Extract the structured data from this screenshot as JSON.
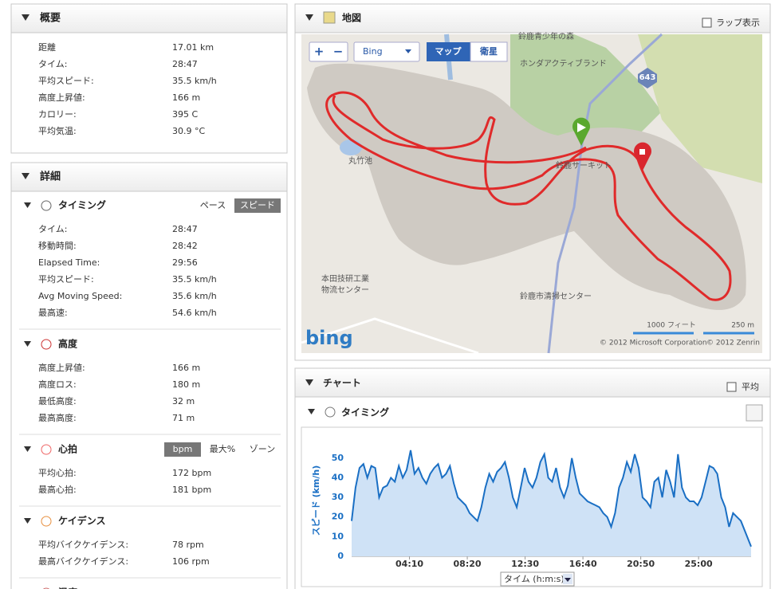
{
  "summary": {
    "title": "概要",
    "rows": [
      [
        "距離",
        "17.01 km"
      ],
      [
        "タイム:",
        "28:47"
      ],
      [
        "平均スピード:",
        "35.5 km/h"
      ],
      [
        "高度上昇値:",
        "166 m"
      ],
      [
        "カロリー:",
        "395 C"
      ],
      [
        "平均気温:",
        "30.9 °C"
      ]
    ]
  },
  "details": {
    "title": "詳細",
    "sections": [
      {
        "title": "タイミング",
        "tabs": [
          "ペース",
          "スピード"
        ],
        "rows": [
          [
            "タイム:",
            "28:47"
          ],
          [
            "移動時間:",
            "28:42"
          ],
          [
            "Elapsed Time:",
            "29:56"
          ],
          [
            "平均スピード:",
            "35.5 km/h"
          ],
          [
            "Avg Moving Speed:",
            "35.6 km/h"
          ],
          [
            "最高速:",
            "54.6 km/h"
          ]
        ]
      },
      {
        "title": "高度",
        "rows": [
          [
            "高度上昇値:",
            "166 m"
          ],
          [
            "高度ロス:",
            "180 m"
          ],
          [
            "最低高度:",
            "32 m"
          ],
          [
            "最高高度:",
            "71 m"
          ]
        ]
      },
      {
        "title": "心拍",
        "tabs": [
          "bpm",
          "最大%",
          "ゾーン"
        ],
        "rows": [
          [
            "平均心拍:",
            "172 bpm"
          ],
          [
            "最高心拍:",
            "181 bpm"
          ]
        ]
      },
      {
        "title": "ケイデンス",
        "rows": [
          [
            "平均バイクケイデンス:",
            "78 rpm"
          ],
          [
            "最高バイクケイデンス:",
            "106 rpm"
          ]
        ]
      },
      {
        "title": "温度",
        "rows": []
      }
    ]
  },
  "map": {
    "title": "地図",
    "lap_toggle": "ラップ表示",
    "zoom_in": "+",
    "zoom_out": "−",
    "provider": "Bing",
    "view_tabs": [
      "マップ",
      "衛星"
    ],
    "labels": [
      "鈴鹿青少年の森",
      "ホンダアクティブランド",
      "丸竹池",
      "鈴鹿サーキット",
      "本田技研工業",
      "物流センター",
      "鈴鹿市清掃センター"
    ],
    "road_number": "643",
    "scale": [
      "1000 フィート",
      "250 m"
    ],
    "copyright": [
      "© 2012 Microsoft Corporation",
      "© 2012 Zenrin"
    ],
    "logo": "bing"
  },
  "chart_panel": {
    "title": "チャート",
    "average_toggle": "平均",
    "section": "タイミング"
  },
  "chart_data": {
    "type": "line",
    "x_label": "タイム (h:m:s)",
    "y_label": "スピード (km/h)",
    "x": [
      0,
      17,
      34,
      51,
      68,
      85,
      102,
      119,
      136,
      153,
      170,
      187,
      204,
      221,
      238,
      255,
      272,
      289,
      306,
      323,
      340,
      357,
      374,
      391,
      408,
      425,
      442,
      459,
      476,
      493,
      510,
      527,
      544,
      561,
      578,
      595,
      612,
      629,
      646,
      663,
      680,
      697,
      714,
      731,
      748,
      765,
      782,
      799,
      816,
      833,
      850,
      867,
      884,
      901,
      918,
      935,
      952,
      969,
      986,
      1003,
      1020,
      1037,
      1054,
      1071,
      1088,
      1105,
      1122,
      1139,
      1156,
      1173,
      1190,
      1207,
      1224,
      1241,
      1258,
      1275,
      1292,
      1309,
      1326,
      1343,
      1360,
      1377,
      1394,
      1411,
      1428,
      1445,
      1462,
      1479,
      1496,
      1513,
      1530,
      1547,
      1564,
      1581,
      1598,
      1615,
      1632,
      1649,
      1666,
      1683,
      1727
    ],
    "series": [
      {
        "name": "スピード",
        "color": "#1a6fc4",
        "values": [
          18,
          35,
          45,
          47,
          40,
          46,
          45,
          30,
          35,
          36,
          40,
          38,
          46,
          40,
          44,
          54,
          42,
          45,
          40,
          37,
          42,
          45,
          47,
          40,
          42,
          46,
          37,
          30,
          28,
          26,
          22,
          20,
          18,
          25,
          35,
          42,
          38,
          43,
          45,
          48,
          40,
          30,
          25,
          35,
          45,
          38,
          35,
          40,
          48,
          52,
          40,
          38,
          45,
          35,
          30,
          36,
          50,
          40,
          32,
          30,
          28,
          27,
          26,
          25,
          22,
          20,
          15,
          22,
          35,
          40,
          48,
          43,
          52,
          45,
          30,
          28,
          25,
          38,
          40,
          30,
          44,
          38,
          30,
          52,
          35,
          30,
          28,
          28,
          26,
          30,
          38,
          46,
          45,
          42,
          30,
          25,
          15,
          22,
          20,
          18,
          5
        ]
      }
    ],
    "xlim": [
      0,
      1727
    ],
    "ylim": [
      0,
      56
    ],
    "xticks": [
      {
        "value": 250,
        "label": "04:10"
      },
      {
        "value": 500,
        "label": "08:20"
      },
      {
        "value": 750,
        "label": "12:30"
      },
      {
        "value": 1000,
        "label": "16:40"
      },
      {
        "value": 1250,
        "label": "20:50"
      },
      {
        "value": 1500,
        "label": "25:00"
      }
    ],
    "yticks": [
      0,
      10,
      20,
      30,
      40,
      50
    ],
    "grid": false
  }
}
